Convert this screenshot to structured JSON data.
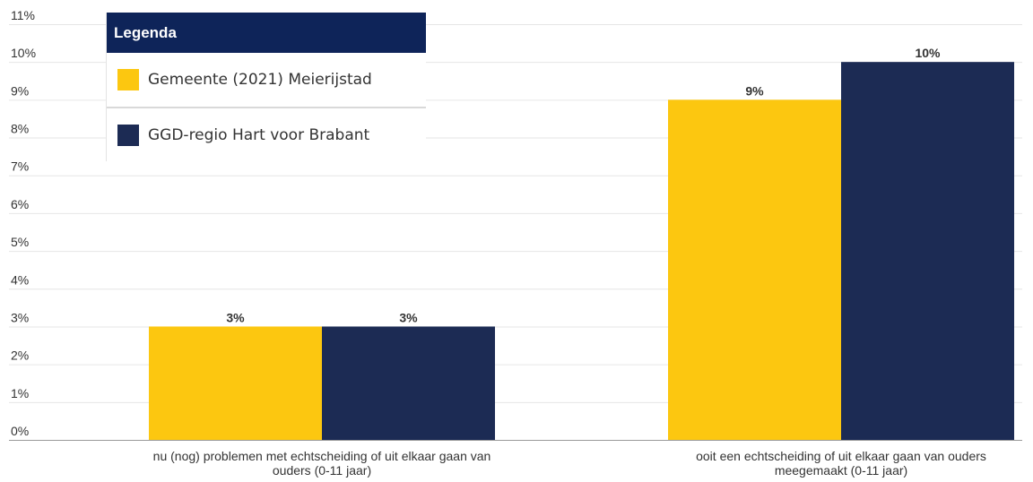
{
  "colors": {
    "gemeente": "#FCC710",
    "ggd": "#1C2B54",
    "legend_header": "#0E2459"
  },
  "legend": {
    "title": "Legenda",
    "items": [
      {
        "label": "Gemeente (2021) Meierijstad",
        "color": "#FCC710"
      },
      {
        "label": "GGD-regio Hart voor Brabant",
        "color": "#1C2B54"
      }
    ]
  },
  "chart_data": {
    "type": "bar",
    "categories": [
      [
        "nu (nog) problemen met echtscheiding of uit elkaar gaan van",
        "ouders (0-11 jaar)"
      ],
      [
        "ooit een echtscheiding of uit elkaar gaan van ouders",
        "meegemaakt (0-11 jaar)"
      ]
    ],
    "series": [
      {
        "name": "Gemeente (2021) Meierijstad",
        "values": [
          3,
          9
        ],
        "labels": [
          "3%",
          "9%"
        ],
        "color": "#FCC710"
      },
      {
        "name": "GGD-regio Hart voor Brabant",
        "values": [
          3,
          10
        ],
        "labels": [
          "3%",
          "10%"
        ],
        "color": "#1C2B54"
      }
    ],
    "yticks": [
      "0%",
      "1%",
      "2%",
      "3%",
      "4%",
      "5%",
      "6%",
      "7%",
      "8%",
      "9%",
      "10%",
      "11%"
    ],
    "ylim": [
      0,
      11
    ],
    "grid": true,
    "legend_position": "top-left"
  }
}
